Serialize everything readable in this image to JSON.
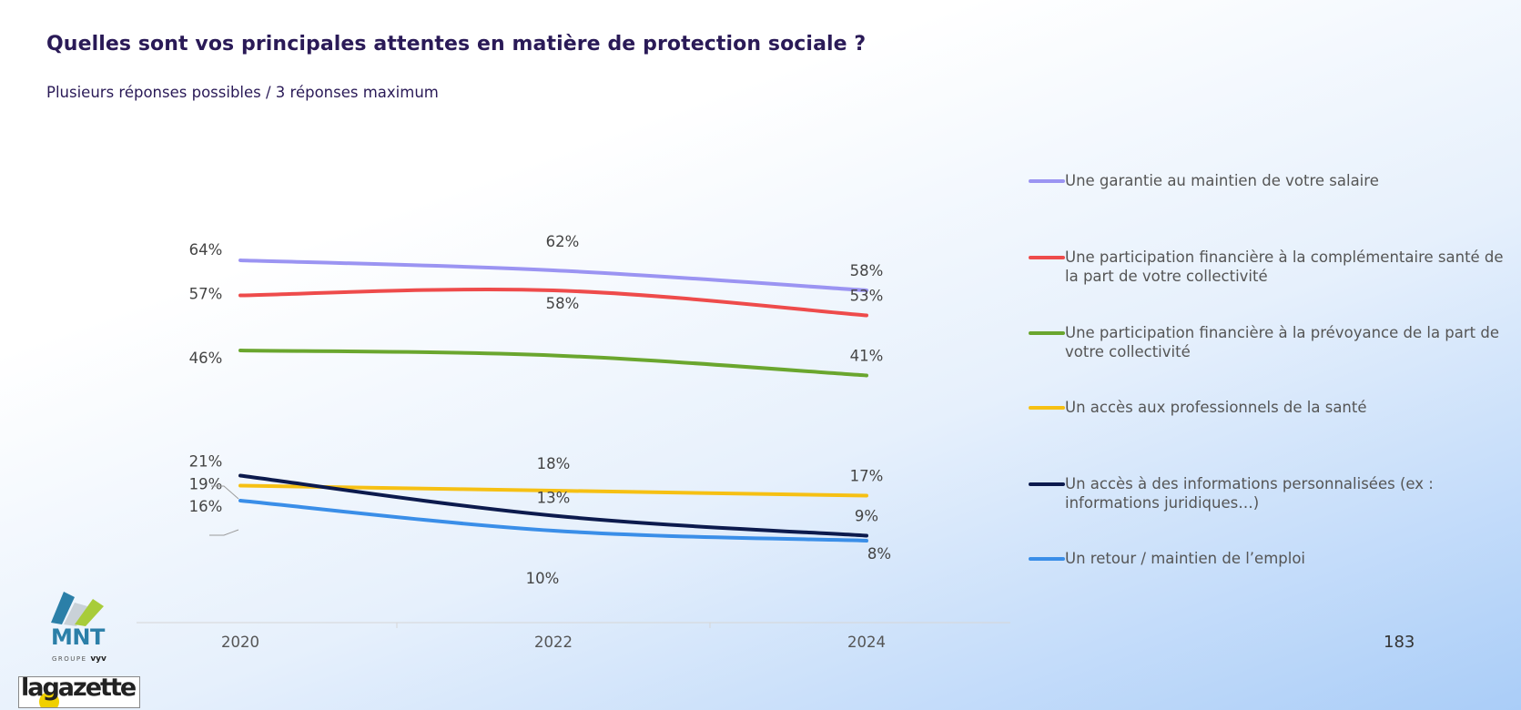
{
  "title": "Quelles sont vos principales attentes en matière de protection sociale ?",
  "subtitle": "Plusieurs réponses possibles / 3 réponses maximum",
  "page_number": "183",
  "logos": {
    "mnt": "MNT",
    "mnt_groupe": "GROUPE",
    "mnt_vyv": "vyv",
    "gazette": "lagazette"
  },
  "chart_data": {
    "type": "line",
    "x": [
      "2020",
      "2022",
      "2024"
    ],
    "ylim": [
      0,
      70
    ],
    "grid": false,
    "legend_position": "right",
    "series": [
      {
        "name": "Une garantie au maintien de votre salaire",
        "values": [
          64,
          62,
          58
        ],
        "labels": [
          "64%",
          "62%",
          "58%"
        ],
        "color": "#9b94f2"
      },
      {
        "name": "Une participation financière à la complémentaire santé de la part de votre collectivité",
        "values": [
          57,
          58,
          53
        ],
        "labels": [
          "57%",
          "58%",
          "53%"
        ],
        "color": "#ee4b4b"
      },
      {
        "name": "Une participation financière à la prévoyance de la part de votre collectivité",
        "values": [
          46,
          45,
          41
        ],
        "labels": [
          "46%",
          "",
          "41%"
        ],
        "color": "#6aa62e"
      },
      {
        "name": "Un accès aux professionnels de la santé",
        "values": [
          19,
          18,
          17
        ],
        "labels": [
          "19%",
          "18%",
          "17%"
        ],
        "color": "#f6c013"
      },
      {
        "name": "Un accès à des informations personnalisées (ex : informations juridiques…)",
        "values": [
          21,
          13,
          9
        ],
        "labels": [
          "21%",
          "13%",
          "9%"
        ],
        "color": "#0c1a4d"
      },
      {
        "name": "Un retour / maintien de l’emploi",
        "values": [
          16,
          10,
          8
        ],
        "labels": [
          "16%",
          "10%",
          "8%"
        ],
        "color": "#3a8ee8"
      }
    ]
  }
}
